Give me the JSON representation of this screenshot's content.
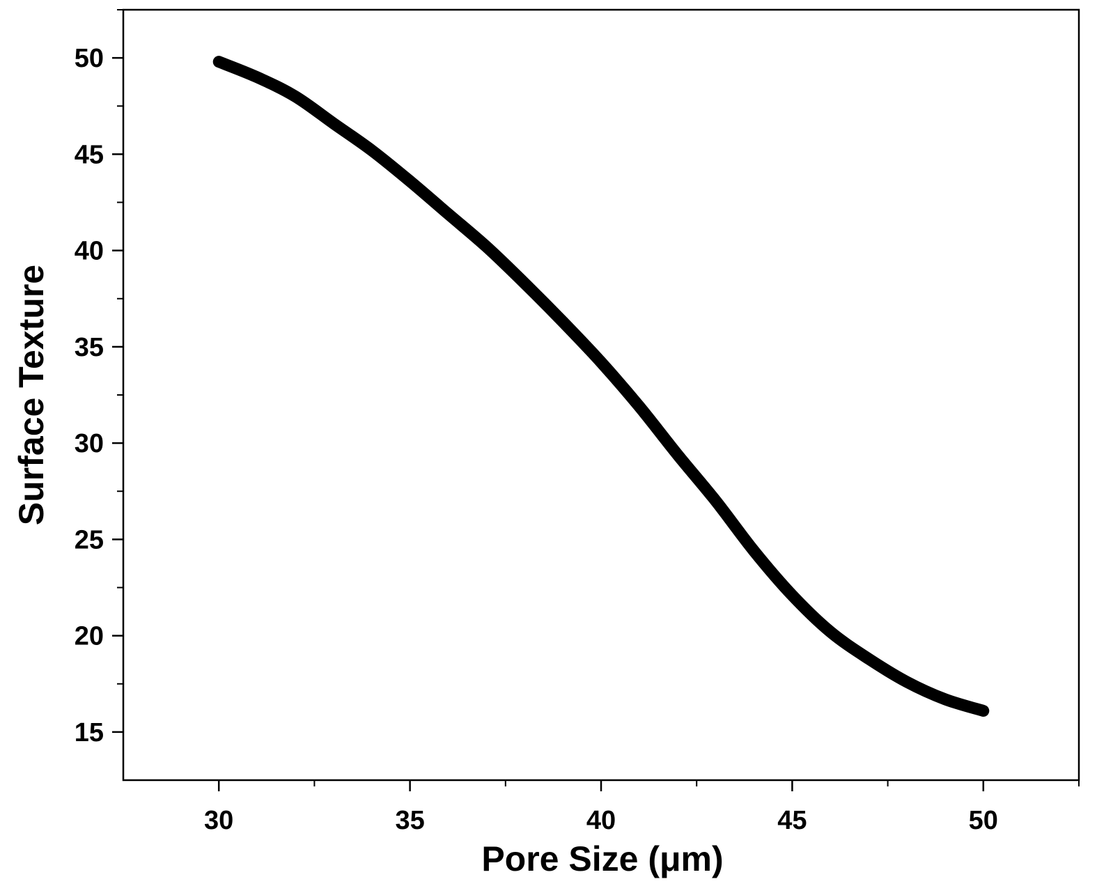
{
  "chart_data": {
    "type": "line",
    "title": "",
    "xlabel": "Pore Size (μm)",
    "ylabel": "Surface Texture",
    "xlim": [
      27.5,
      52.5
    ],
    "ylim": [
      12.5,
      52.5
    ],
    "x_ticks": [
      30,
      35,
      40,
      45,
      50
    ],
    "y_ticks": [
      15,
      20,
      25,
      30,
      35,
      40,
      45,
      50
    ],
    "x_tick_labels": [
      "30",
      "35",
      "40",
      "45",
      "50"
    ],
    "y_tick_labels": [
      "15",
      "20",
      "25",
      "30",
      "35",
      "40",
      "45",
      "50"
    ],
    "grid": false,
    "legend": "none",
    "line_color": "#000000",
    "series": [
      {
        "x": [
          30,
          31,
          32,
          33,
          34,
          35,
          36,
          37,
          38,
          39,
          40,
          41,
          42,
          43,
          44,
          45,
          46,
          47,
          48,
          49,
          50
        ],
        "values": [
          49.8,
          49.0,
          48.0,
          46.6,
          45.2,
          43.6,
          41.9,
          40.2,
          38.3,
          36.3,
          34.2,
          31.9,
          29.4,
          27.0,
          24.4,
          22.1,
          20.2,
          18.8,
          17.6,
          16.7,
          16.1
        ]
      }
    ]
  }
}
